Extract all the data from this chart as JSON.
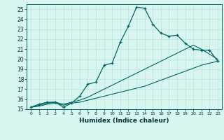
{
  "xlabel": "Humidex (Indice chaleur)",
  "bg_color": "#d8f5f0",
  "grid_color": "#b8e8e0",
  "line_color": "#006666",
  "xlim": [
    -0.5,
    23.5
  ],
  "ylim": [
    15,
    25.5
  ],
  "xticks": [
    0,
    1,
    2,
    3,
    4,
    5,
    6,
    7,
    8,
    9,
    10,
    11,
    12,
    13,
    14,
    15,
    16,
    17,
    18,
    19,
    20,
    21,
    22,
    23
  ],
  "yticks": [
    15,
    16,
    17,
    18,
    19,
    20,
    21,
    22,
    23,
    24,
    25
  ],
  "main_y": [
    15.2,
    15.5,
    15.7,
    15.7,
    15.2,
    15.6,
    16.3,
    17.5,
    17.7,
    19.4,
    19.6,
    21.7,
    23.3,
    25.2,
    25.1,
    23.5,
    22.6,
    22.3,
    22.4,
    21.6,
    21.0,
    20.9,
    20.9,
    19.8
  ],
  "line1_y": [
    15.2,
    15.4,
    15.6,
    15.7,
    15.5,
    15.7,
    15.9,
    16.2,
    16.6,
    17.0,
    17.4,
    17.8,
    18.2,
    18.6,
    19.0,
    19.4,
    19.8,
    20.2,
    20.6,
    21.0,
    21.4,
    21.0,
    20.5,
    20.0
  ],
  "line2_y": [
    15.2,
    15.3,
    15.5,
    15.6,
    15.4,
    15.6,
    15.7,
    15.9,
    16.1,
    16.3,
    16.5,
    16.7,
    16.9,
    17.1,
    17.3,
    17.6,
    17.9,
    18.2,
    18.5,
    18.8,
    19.1,
    19.4,
    19.6,
    19.8
  ]
}
